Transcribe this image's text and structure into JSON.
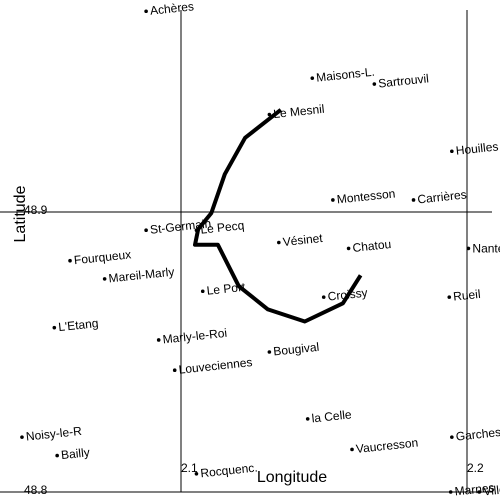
{
  "chart_data": {
    "type": "scatter",
    "xlabel": "Longitude",
    "ylabel": "Latitude",
    "x_ticks": [
      {
        "value": 2.1,
        "label": "2.1"
      },
      {
        "value": 2.2,
        "label": "2.2"
      }
    ],
    "y_ticks": [
      {
        "value": 48.9,
        "label": "48.9"
      },
      {
        "value": 48.8,
        "label": "48.8"
      }
    ],
    "xlim": [
      2.0,
      2.2
    ],
    "ylim": [
      48.8,
      48.93
    ],
    "grid_lines": {
      "x": [
        2.1,
        2.2
      ],
      "y": [
        48.9,
        48.8
      ]
    },
    "places": [
      {
        "name": "Achères",
        "lon": 2.0878,
        "lat": 48.9717,
        "angle": -6
      },
      {
        "name": "Maisons-L.",
        "lon": 2.1459,
        "lat": 48.9478,
        "angle": -6
      },
      {
        "name": "Sartrouvil",
        "lon": 2.1676,
        "lat": 48.9457,
        "angle": -6
      },
      {
        "name": "Le Mesnil",
        "lon": 2.1309,
        "lat": 48.9348,
        "angle": -6
      },
      {
        "name": "Houilles",
        "lon": 2.1947,
        "lat": 48.9217,
        "angle": -6
      },
      {
        "name": "Montesson",
        "lon": 2.1531,
        "lat": 48.9043,
        "angle": -6
      },
      {
        "name": "Carrières",
        "lon": 2.1813,
        "lat": 48.9043,
        "angle": -6
      },
      {
        "name": "St-Germain",
        "lon": 2.0878,
        "lat": 48.8935,
        "angle": -6
      },
      {
        "name": "Le Pecq",
        "lon": 2.1054,
        "lat": 48.8935,
        "angle": -6
      },
      {
        "name": "Vésinet",
        "lon": 2.1342,
        "lat": 48.8891,
        "angle": -6
      },
      {
        "name": "Chatou",
        "lon": 2.1586,
        "lat": 48.887,
        "angle": -6
      },
      {
        "name": "Nanterre",
        "lon": 2.2005,
        "lat": 48.887,
        "angle": 0
      },
      {
        "name": "Fourqueux",
        "lon": 2.0612,
        "lat": 48.8826,
        "angle": -6
      },
      {
        "name": "Mareil-Marly",
        "lon": 2.0733,
        "lat": 48.8761,
        "angle": -6
      },
      {
        "name": "Le Port",
        "lon": 2.1076,
        "lat": 48.8717,
        "angle": -6
      },
      {
        "name": "Croissy",
        "lon": 2.1499,
        "lat": 48.8696,
        "angle": -6
      },
      {
        "name": "Rueil",
        "lon": 2.1938,
        "lat": 48.8696,
        "angle": -6
      },
      {
        "name": "L'Etang",
        "lon": 2.0557,
        "lat": 48.8587,
        "angle": -6
      },
      {
        "name": "Marly-le-Roi",
        "lon": 2.0922,
        "lat": 48.8543,
        "angle": -6
      },
      {
        "name": "Bougival",
        "lon": 2.1309,
        "lat": 48.85,
        "angle": -6
      },
      {
        "name": "Louveciennes",
        "lon": 2.0978,
        "lat": 48.8435,
        "angle": -6
      },
      {
        "name": "la Celle",
        "lon": 2.1443,
        "lat": 48.8261,
        "angle": -6
      },
      {
        "name": "Noisy-le-R",
        "lon": 2.0444,
        "lat": 48.8196,
        "angle": -6
      },
      {
        "name": "Garches",
        "lon": 2.1947,
        "lat": 48.8196,
        "angle": -6
      },
      {
        "name": "Vaucresson",
        "lon": 2.1598,
        "lat": 48.8152,
        "angle": -6
      },
      {
        "name": "Bailly",
        "lon": 2.0567,
        "lat": 48.813,
        "angle": -6
      },
      {
        "name": "Rocquenc.",
        "lon": 2.1054,
        "lat": 48.8065,
        "angle": -6
      },
      {
        "name": "Marnes",
        "lon": 2.1943,
        "lat": 48.8,
        "angle": -6
      },
      {
        "name": "Ville d'A",
        "lon": 2.2043,
        "lat": 48.8,
        "angle": -6
      }
    ],
    "route": [
      {
        "lon": 2.1349,
        "lat": 48.9365
      },
      {
        "lon": 2.1224,
        "lat": 48.9265
      },
      {
        "lon": 2.1153,
        "lat": 48.9135
      },
      {
        "lon": 2.1106,
        "lat": 48.8996
      },
      {
        "lon": 2.106,
        "lat": 48.8939
      },
      {
        "lon": 2.1049,
        "lat": 48.8883
      },
      {
        "lon": 2.1129,
        "lat": 48.8883
      },
      {
        "lon": 2.1129,
        "lat": 48.8883
      },
      {
        "lon": 2.1202,
        "lat": 48.8735
      },
      {
        "lon": 2.1304,
        "lat": 48.8652
      },
      {
        "lon": 2.1433,
        "lat": 48.8609
      },
      {
        "lon": 2.1566,
        "lat": 48.8674
      },
      {
        "lon": 2.1628,
        "lat": 48.8774
      },
      {
        "lon": 2.1628,
        "lat": 48.8774
      }
    ]
  }
}
